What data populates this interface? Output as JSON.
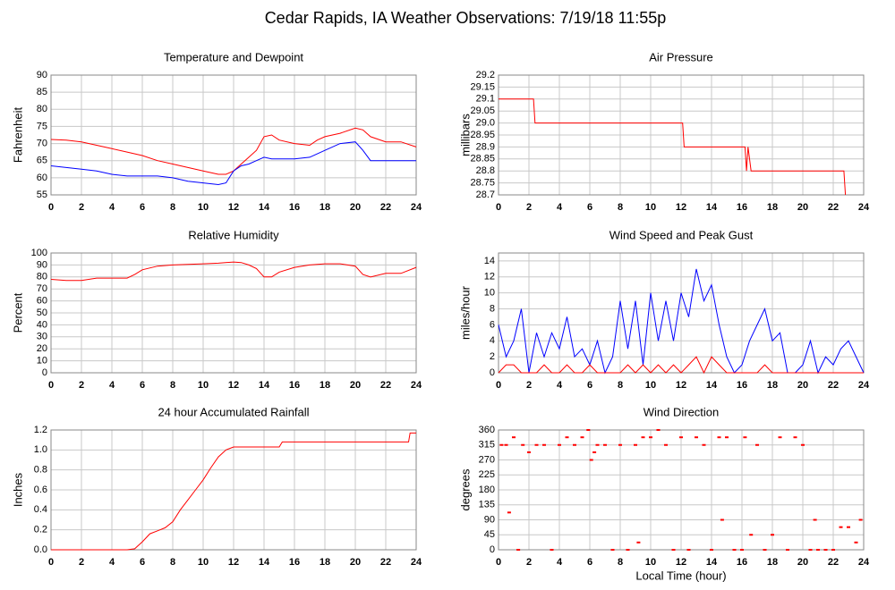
{
  "title": "Cedar Rapids, IA Weather Observations: 7/19/18 11:55p",
  "chart_data": [
    {
      "type": "line",
      "title": "Temperature and Dewpoint",
      "ylabel": "Fahrenheit",
      "xlim": [
        0,
        24
      ],
      "xticks": [
        0,
        2,
        4,
        6,
        8,
        10,
        12,
        14,
        16,
        18,
        20,
        22,
        24
      ],
      "ylim": [
        55,
        90
      ],
      "yticks": [
        55,
        60,
        65,
        70,
        75,
        80,
        85,
        90
      ],
      "grid": true,
      "x": [
        0,
        1,
        2,
        3,
        4,
        5,
        6,
        7,
        8,
        9,
        10,
        11,
        11.5,
        12,
        12.5,
        13,
        13.5,
        14,
        14.5,
        15,
        16,
        17,
        17.5,
        18,
        19,
        20,
        20.5,
        21,
        22,
        23,
        24
      ],
      "series": [
        {
          "color": "#ff0000",
          "values": [
            71.2,
            71,
            70.5,
            69.5,
            68.5,
            67.5,
            66.5,
            65,
            64,
            63,
            62,
            61,
            61,
            62,
            64,
            66,
            68,
            72,
            72.5,
            71,
            70,
            69.5,
            71,
            72,
            73,
            74.5,
            74,
            72,
            70.5,
            70.5,
            69
          ]
        },
        {
          "color": "#0000ff",
          "values": [
            63.5,
            63,
            62.5,
            62,
            61,
            60.5,
            60.5,
            60.5,
            60,
            59,
            58.5,
            58,
            58.5,
            62,
            63.5,
            64,
            65,
            66,
            65.5,
            65.5,
            65.5,
            66,
            67,
            68,
            70,
            70.5,
            68,
            65,
            65,
            65,
            65
          ]
        }
      ]
    },
    {
      "type": "line",
      "title": "Air Pressure",
      "ylabel": "millibars",
      "xlim": [
        0,
        24
      ],
      "xticks": [
        0,
        2,
        4,
        6,
        8,
        10,
        12,
        14,
        16,
        18,
        20,
        22,
        24
      ],
      "ylim": [
        28.7,
        29.2
      ],
      "yticks": [
        28.7,
        28.75,
        28.8,
        28.85,
        28.9,
        28.95,
        {
          "value": 29.0,
          "label": "29.0"
        },
        29.05,
        29.1,
        29.15,
        29.2
      ],
      "grid": true,
      "x": [
        0,
        2.3,
        2.4,
        12.1,
        12.2,
        16.2,
        16.3,
        16.4,
        16.6,
        22.7,
        22.8
      ],
      "series": [
        {
          "color": "#ff0000",
          "values": [
            29.1,
            29.1,
            29.0,
            29.0,
            28.9,
            28.9,
            28.8,
            28.9,
            28.8,
            28.8,
            28.7
          ]
        }
      ]
    },
    {
      "type": "line",
      "title": "Relative Humidity",
      "ylabel": "Percent",
      "xlim": [
        0,
        24
      ],
      "xticks": [
        0,
        2,
        4,
        6,
        8,
        10,
        12,
        14,
        16,
        18,
        20,
        22,
        24
      ],
      "ylim": [
        0,
        100
      ],
      "yticks": [
        0,
        10,
        20,
        30,
        40,
        50,
        60,
        70,
        80,
        90,
        100
      ],
      "grid": true,
      "x": [
        0,
        1,
        2,
        3,
        4,
        5,
        5.5,
        6,
        7,
        8,
        9,
        10,
        11,
        12,
        12.5,
        13,
        13.5,
        14,
        14.5,
        15,
        16,
        17,
        18,
        19,
        20,
        20.5,
        21,
        22,
        23,
        24
      ],
      "series": [
        {
          "color": "#ff0000",
          "values": [
            78,
            77,
            77,
            79,
            79,
            79,
            82,
            86,
            89,
            90,
            90.5,
            91,
            91.5,
            92.5,
            92,
            90,
            87,
            80,
            80,
            84,
            88,
            90,
            91,
            91,
            89,
            82,
            80,
            83,
            83,
            88
          ]
        }
      ]
    },
    {
      "type": "line",
      "title": "Wind Speed and Peak Gust",
      "ylabel": "miles/hour",
      "xlim": [
        0,
        24
      ],
      "xticks": [
        0,
        2,
        4,
        6,
        8,
        10,
        12,
        14,
        16,
        18,
        20,
        22,
        24
      ],
      "ylim": [
        0,
        15
      ],
      "yticks": [
        0,
        2,
        4,
        6,
        8,
        10,
        12,
        14
      ],
      "grid": true,
      "x": [
        0,
        0.5,
        1,
        1.5,
        2,
        2.5,
        3,
        3.5,
        4,
        4.5,
        5,
        5.5,
        6,
        6.5,
        7,
        7.5,
        8,
        8.5,
        9,
        9.5,
        10,
        10.5,
        11,
        11.5,
        12,
        12.5,
        13,
        13.5,
        14,
        14.5,
        15,
        15.5,
        16,
        16.5,
        17,
        17.5,
        18,
        18.5,
        19,
        19.5,
        20,
        20.5,
        21,
        21.5,
        22,
        22.5,
        23,
        23.5,
        24
      ],
      "series": [
        {
          "color": "#0000ff",
          "values": [
            6,
            2,
            4,
            8,
            0,
            5,
            2,
            5,
            3,
            7,
            2,
            3,
            1,
            4,
            0,
            2,
            9,
            3,
            9,
            1,
            10,
            4,
            9,
            4,
            10,
            7,
            13,
            9,
            11,
            6,
            2,
            0,
            1,
            4,
            6,
            8,
            4,
            5,
            0,
            0,
            1,
            4,
            0,
            2,
            1,
            3,
            4,
            2,
            0
          ]
        },
        {
          "color": "#ff0000",
          "values": [
            0,
            1,
            1,
            0,
            0,
            0,
            1,
            0,
            0,
            1,
            0,
            0,
            1,
            0,
            0,
            0,
            0,
            1,
            0,
            1,
            0,
            1,
            0,
            1,
            0,
            1,
            2,
            0,
            2,
            1,
            0,
            0,
            0,
            0,
            0,
            1,
            0,
            0,
            0,
            0,
            0,
            0,
            0,
            0,
            0,
            0,
            0,
            0,
            0
          ]
        }
      ]
    },
    {
      "type": "line",
      "title": "24 hour Accumulated Rainfall",
      "ylabel": "Inches",
      "xlim": [
        0,
        24
      ],
      "xticks": [
        0,
        2,
        4,
        6,
        8,
        10,
        12,
        14,
        16,
        18,
        20,
        22,
        24
      ],
      "ylim": [
        0,
        1.2
      ],
      "yticks": [
        {
          "value": 0,
          "label": "0.0"
        },
        0.2,
        0.4,
        0.6,
        0.8,
        {
          "value": 1,
          "label": "1.0"
        },
        1.2
      ],
      "grid": true,
      "x": [
        0,
        5,
        5.5,
        6,
        6.5,
        7,
        7.5,
        8,
        8.5,
        9,
        9.5,
        10,
        10.5,
        11,
        11.5,
        12,
        15,
        15.2,
        23.5,
        23.6,
        24
      ],
      "series": [
        {
          "color": "#ff0000",
          "values": [
            0,
            0,
            0.01,
            0.08,
            0.16,
            0.19,
            0.22,
            0.28,
            0.4,
            0.5,
            0.6,
            0.7,
            0.82,
            0.93,
            1.0,
            1.03,
            1.03,
            1.08,
            1.08,
            1.17,
            1.17
          ]
        }
      ]
    },
    {
      "type": "scatter",
      "title": "Wind Direction",
      "ylabel": "degrees",
      "xlabel": "Local Time (hour)",
      "xlim": [
        0,
        24
      ],
      "xticks": [
        0,
        2,
        4,
        6,
        8,
        10,
        12,
        14,
        16,
        18,
        20,
        22,
        24
      ],
      "ylim": [
        0,
        360
      ],
      "yticks": [
        0,
        45,
        90,
        135,
        180,
        225,
        270,
        315,
        360
      ],
      "grid": true,
      "color": "#ff0000",
      "x": [
        0.2,
        0.5,
        0.7,
        1,
        1.3,
        1.6,
        2,
        2.5,
        3,
        3.5,
        4,
        4.5,
        5,
        5.5,
        5.9,
        6.1,
        6.3,
        6.5,
        7,
        7.5,
        8,
        8.5,
        9,
        9.2,
        9.5,
        10,
        10.5,
        11,
        11.5,
        12,
        12.5,
        13,
        13.5,
        14,
        14.5,
        14.7,
        15,
        15.5,
        16,
        16.2,
        16.6,
        17,
        17.5,
        18,
        18.5,
        19,
        19.5,
        20,
        20.5,
        20.8,
        21,
        21.5,
        22,
        22.5,
        23,
        23.5,
        23.8
      ],
      "values": [
        315,
        315,
        112,
        338,
        0,
        315,
        293,
        315,
        315,
        0,
        315,
        338,
        315,
        338,
        360,
        270,
        293,
        315,
        315,
        0,
        315,
        0,
        315,
        22,
        338,
        338,
        360,
        315,
        0,
        338,
        0,
        338,
        315,
        0,
        338,
        90,
        338,
        0,
        0,
        338,
        45,
        315,
        0,
        45,
        338,
        0,
        338,
        315,
        0,
        90,
        0,
        0,
        0,
        68,
        68,
        22,
        90
      ]
    }
  ]
}
